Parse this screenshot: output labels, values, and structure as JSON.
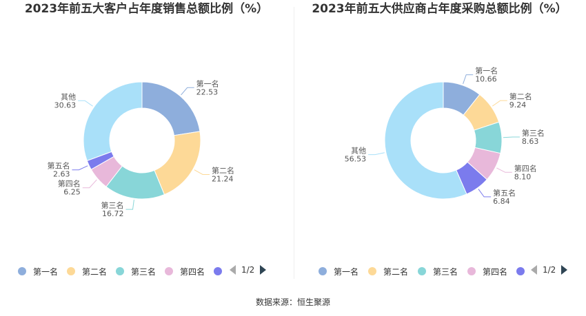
{
  "source": "数据来源：恒生聚源",
  "legend_pager": "1/2",
  "chart_data": [
    {
      "type": "pie",
      "title": "2023年前五大客户占年度销售总额比例（%）",
      "categories": [
        "第一名",
        "第二名",
        "第三名",
        "第四名",
        "第五名",
        "其他"
      ],
      "values": [
        22.53,
        21.24,
        16.72,
        6.25,
        2.63,
        30.63
      ],
      "value_labels": [
        "22.53",
        "21.24",
        "16.72",
        "6.25",
        "2.63",
        "30.63"
      ],
      "colors": [
        "#8eaedc",
        "#fdd997",
        "#88d6d8",
        "#e8b8da",
        "#7b7bed",
        "#a9e0f9"
      ],
      "legend": [
        "第一名",
        "第二名",
        "第三名",
        "第四名"
      ],
      "legend_position": "bottom"
    },
    {
      "type": "pie",
      "title": "2023年前五大供应商占年度采购总额比例（%）",
      "categories": [
        "第一名",
        "第二名",
        "第三名",
        "第四名",
        "第五名",
        "其他"
      ],
      "values": [
        10.66,
        9.24,
        8.63,
        8.1,
        6.84,
        56.53
      ],
      "value_labels": [
        "10.66",
        "9.24",
        "8.63",
        "8.10",
        "6.84",
        "56.53"
      ],
      "colors": [
        "#8eaedc",
        "#fdd997",
        "#88d6d8",
        "#e8b8da",
        "#7b7bed",
        "#a9e0f9"
      ],
      "legend": [
        "第一名",
        "第二名",
        "第三名",
        "第四名"
      ],
      "legend_position": "bottom"
    }
  ]
}
